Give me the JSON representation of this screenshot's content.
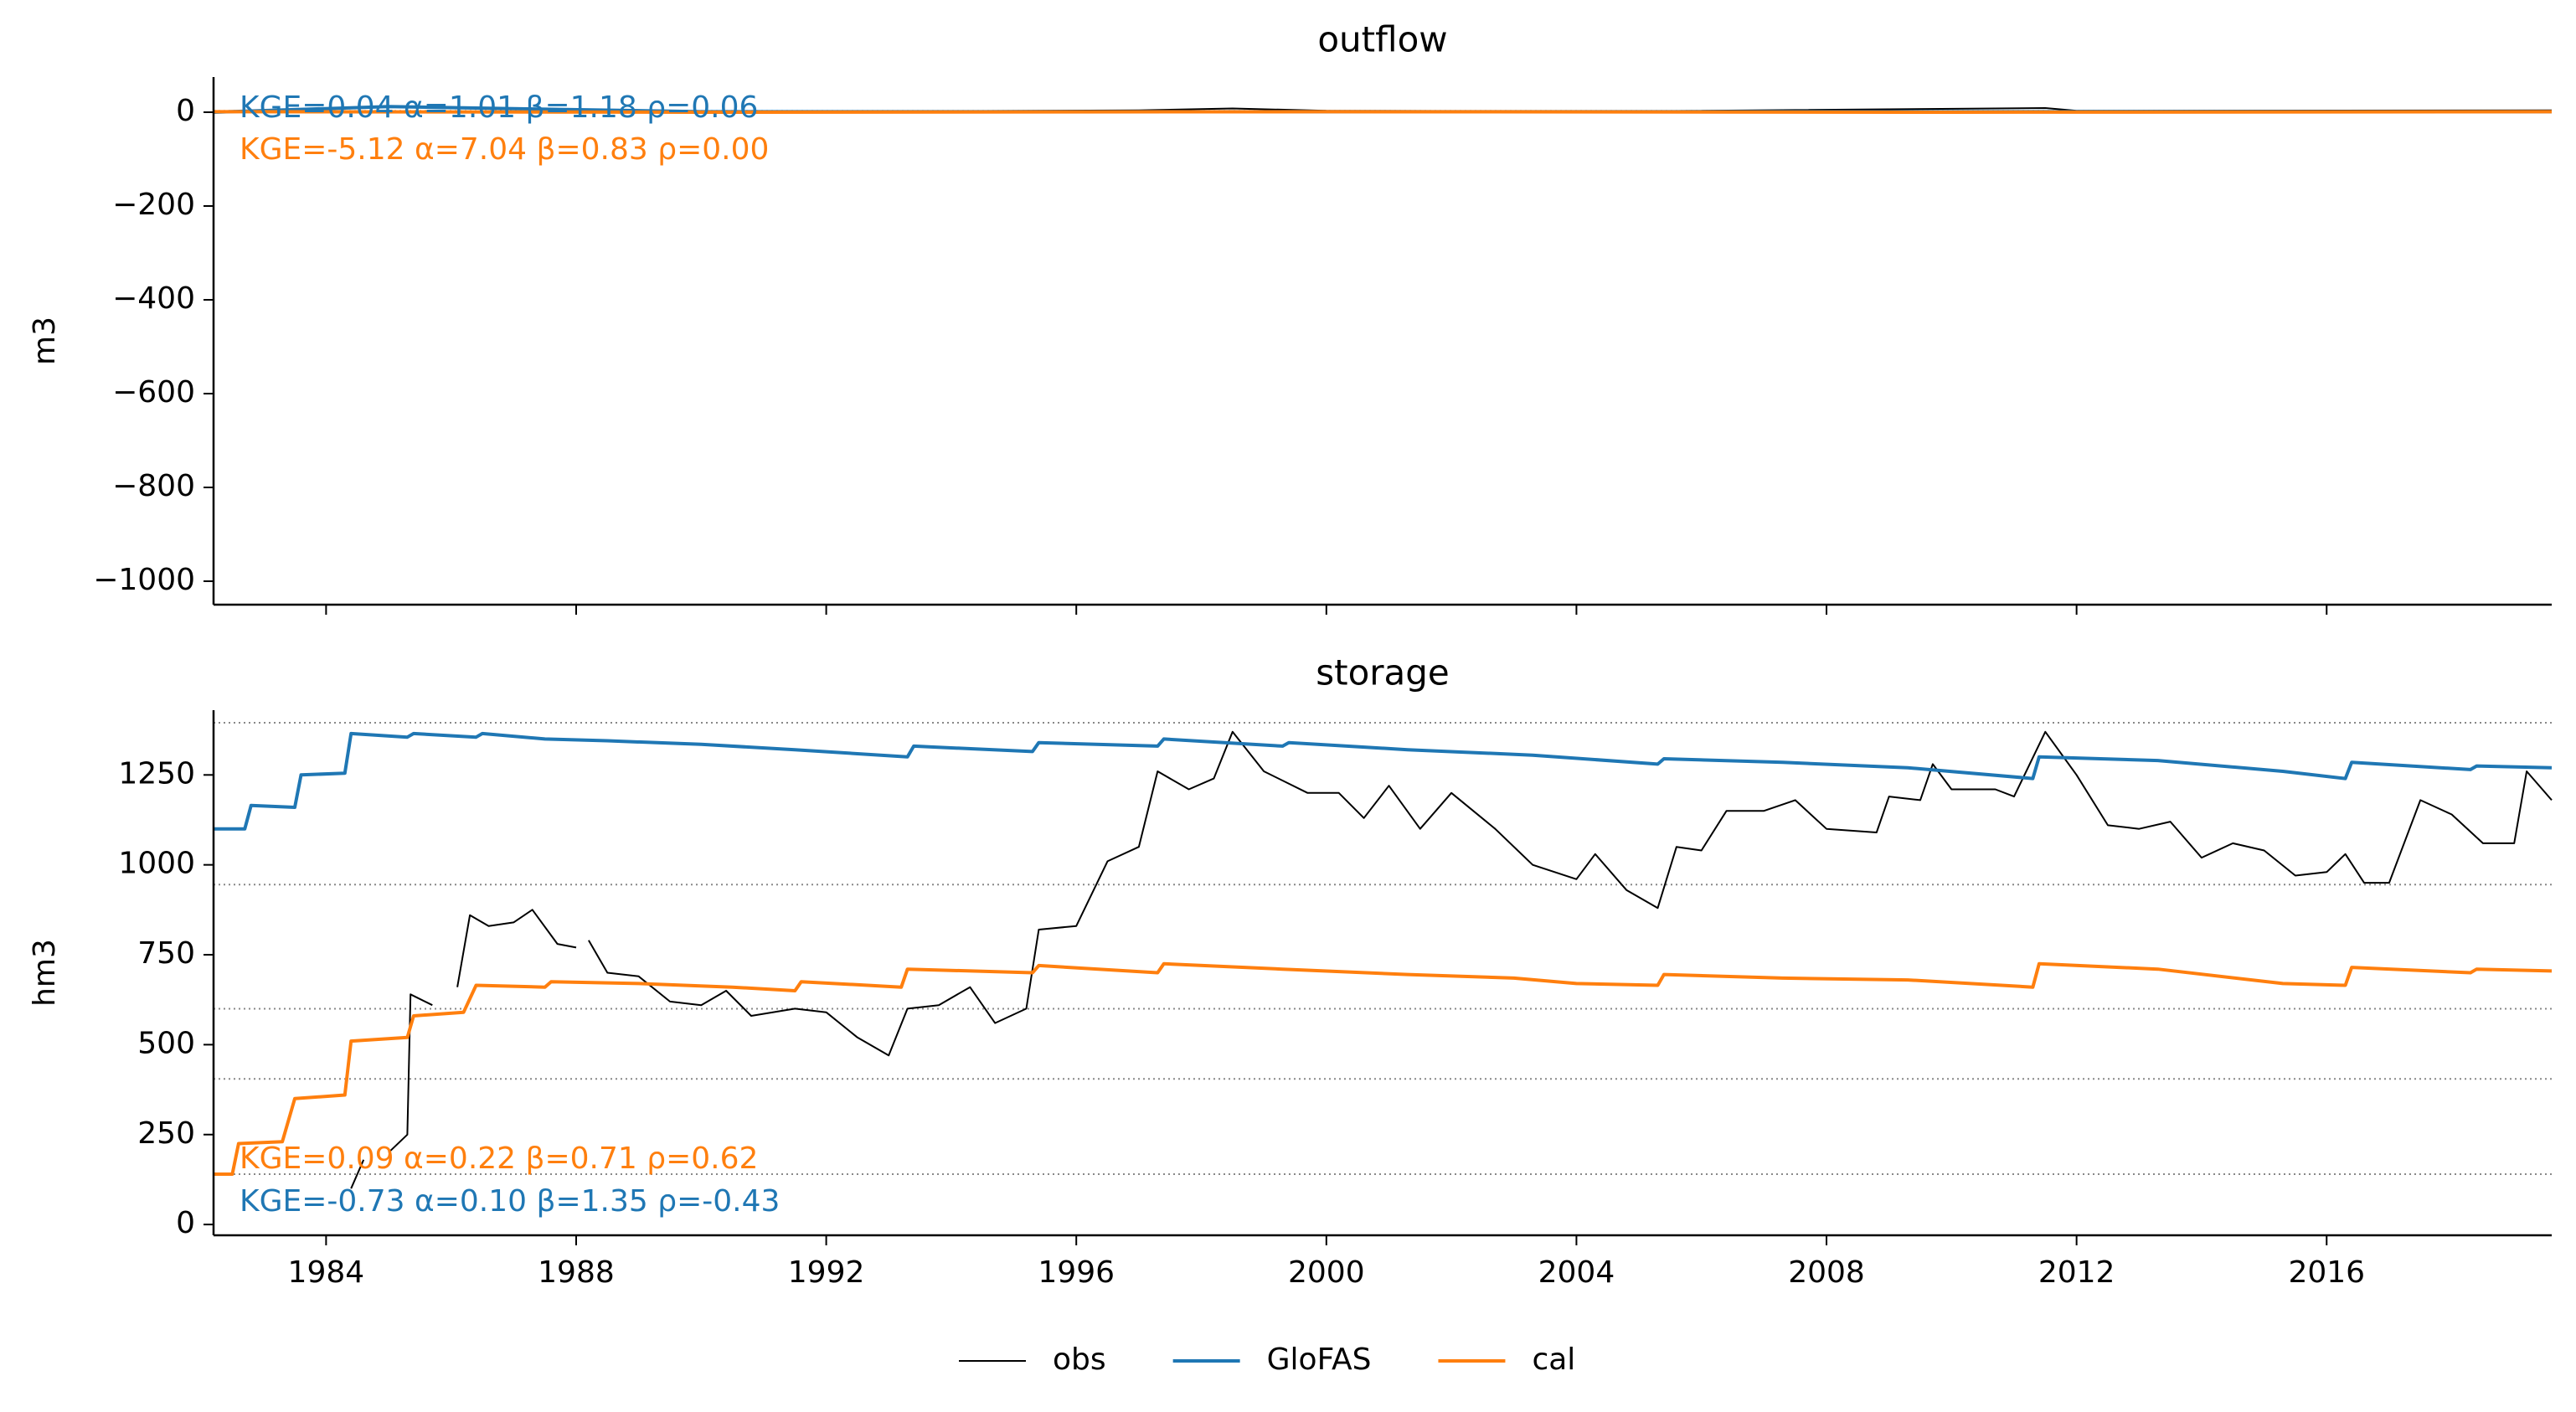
{
  "chart_data": [
    {
      "type": "line",
      "title": "outflow",
      "ylabel": "m3",
      "xlim": [
        1982.2,
        2019.6
      ],
      "xticks": [
        1984,
        1988,
        1992,
        1996,
        2000,
        2004,
        2008,
        2012,
        2016
      ],
      "ylim": [
        -1050,
        75
      ],
      "yticks": [
        {
          "value": 0,
          "label": "0"
        },
        {
          "value": -200,
          "label": "−200"
        },
        {
          "value": -400,
          "label": "−400"
        },
        {
          "value": -600,
          "label": "−600"
        },
        {
          "value": -800,
          "label": "−800"
        },
        {
          "value": -1000,
          "label": "−1000"
        }
      ],
      "hlines": [
        3
      ],
      "series": [
        {
          "name": "obs",
          "color": "#000000",
          "x": [
            1993.2,
            1997,
            1998.5,
            2000,
            2005,
            2011.5,
            2012,
            2019.6
          ],
          "values": [
            2,
            4,
            8,
            3,
            2,
            9,
            3,
            4
          ]
        },
        {
          "name": "GloFAS",
          "color": "#1f77b4",
          "x": [
            1982.2,
            1985,
            1990,
            2000,
            2010,
            2019.6
          ],
          "values": [
            0,
            12,
            1,
            1,
            1,
            1
          ]
        },
        {
          "name": "cal",
          "color": "#ff7f0e",
          "x": [
            1982.2,
            1990,
            2000,
            2010,
            2019.6
          ],
          "values": [
            1,
            0,
            1,
            0,
            1
          ]
        }
      ],
      "annotations": [
        {
          "text": "KGE=0.04  α=1.01  β=1.18  ρ=0.06",
          "color": "#1f77b4"
        },
        {
          "text": "KGE=-5.12  α=7.04  β=0.83  ρ=0.00",
          "color": "#ff7f0e"
        }
      ]
    },
    {
      "type": "line",
      "title": "storage",
      "ylabel": "hm3",
      "xlim": [
        1982.2,
        2019.6
      ],
      "xticks": [
        1984,
        1988,
        1992,
        1996,
        2000,
        2004,
        2008,
        2012,
        2016
      ],
      "ylim": [
        -30,
        1430
      ],
      "yticks": [
        0,
        250,
        500,
        750,
        1000,
        1250
      ],
      "hlines": [
        1395,
        945,
        600,
        405,
        140
      ],
      "series": [
        {
          "name": "obs",
          "color": "#000000",
          "x": [
            1984.4,
            1984.6,
            1984.7,
            1985.0,
            1985.3,
            1985.35,
            1985.7,
            1985.9,
            1986.1,
            1986.3,
            1986.6,
            1987,
            1987.3,
            1987.7,
            1988,
            1988.1,
            1988.2,
            1988.5,
            1989,
            1989.5,
            1990,
            1990.4,
            1990.8,
            1991.5,
            1992,
            1992.5,
            1993,
            1993.3,
            1993.8,
            1994.3,
            1994.7,
            1995.2,
            1995.4,
            1996,
            1996.5,
            1997,
            1997.3,
            1997.8,
            1998.2,
            1998.5,
            1999,
            1999.7,
            2000.2,
            2000.6,
            2001,
            2001.5,
            2002,
            2002.7,
            2003.3,
            2004,
            2004.3,
            2004.8,
            2005.3,
            2005.6,
            2006,
            2006.4,
            2007,
            2007.5,
            2008,
            2008.8,
            2009,
            2009.5,
            2009.7,
            2010,
            2010.7,
            2011,
            2011.5,
            2012,
            2012.5,
            2013,
            2013.5,
            2014,
            2014.5,
            2015,
            2015.5,
            2016,
            2016.3,
            2016.6,
            2017,
            2017.5,
            2018,
            2018.5,
            2019,
            2019.2,
            2019.6
          ],
          "values": [
            100,
            180,
            null,
            200,
            250,
            640,
            610,
            null,
            660,
            860,
            830,
            840,
            875,
            780,
            770,
            null,
            790,
            700,
            690,
            620,
            610,
            650,
            580,
            600,
            590,
            520,
            470,
            600,
            610,
            660,
            560,
            600,
            820,
            830,
            1010,
            1050,
            1260,
            1210,
            1240,
            1370,
            1260,
            1200,
            1200,
            1130,
            1220,
            1100,
            1200,
            1100,
            1000,
            960,
            1030,
            930,
            880,
            1050,
            1040,
            1150,
            1150,
            1180,
            1100,
            1090,
            1190,
            1180,
            1280,
            1210,
            1210,
            1190,
            1370,
            1250,
            1110,
            1100,
            1120,
            1020,
            1060,
            1040,
            970,
            980,
            1030,
            950,
            950,
            1180,
            1140,
            1060,
            1060,
            1260,
            1180
          ]
        },
        {
          "name": "GloFAS",
          "color": "#1f77b4",
          "x": [
            1982.2,
            1982.7,
            1982.8,
            1983.5,
            1983.6,
            1984.3,
            1984.4,
            1985.3,
            1985.4,
            1986.4,
            1986.5,
            1987.5,
            1988.5,
            1990,
            1991.5,
            1993.3,
            1993.4,
            1995.3,
            1995.4,
            1997.3,
            1997.4,
            1999.3,
            1999.4,
            2001.3,
            2003.3,
            2005.3,
            2005.4,
            2007.3,
            2009.3,
            2011.3,
            2011.4,
            2013.3,
            2015.3,
            2016.3,
            2016.4,
            2018.3,
            2018.4,
            2019.6
          ],
          "values": [
            1100,
            1100,
            1165,
            1160,
            1250,
            1255,
            1365,
            1355,
            1365,
            1355,
            1365,
            1350,
            1345,
            1335,
            1320,
            1300,
            1330,
            1315,
            1340,
            1330,
            1350,
            1330,
            1340,
            1320,
            1305,
            1280,
            1295,
            1285,
            1270,
            1240,
            1300,
            1290,
            1260,
            1240,
            1285,
            1265,
            1275,
            1270
          ]
        },
        {
          "name": "cal",
          "color": "#ff7f0e",
          "x": [
            1982.2,
            1982.5,
            1982.6,
            1983.3,
            1983.5,
            1984.3,
            1984.4,
            1985.3,
            1985.4,
            1986.2,
            1986.4,
            1987.5,
            1987.6,
            1989,
            1990.5,
            1991.5,
            1991.6,
            1993.2,
            1993.3,
            1995.3,
            1995.4,
            1997.3,
            1997.4,
            1999.3,
            2001.3,
            2003,
            2004,
            2005.3,
            2005.4,
            2007.3,
            2009.3,
            2011.3,
            2011.4,
            2013.3,
            2015.3,
            2016.3,
            2016.4,
            2018.3,
            2018.4,
            2019.6
          ],
          "values": [
            140,
            140,
            225,
            230,
            350,
            360,
            510,
            520,
            580,
            590,
            665,
            660,
            675,
            670,
            660,
            650,
            675,
            660,
            710,
            700,
            720,
            700,
            725,
            710,
            695,
            685,
            670,
            665,
            695,
            685,
            680,
            660,
            725,
            710,
            670,
            665,
            715,
            700,
            710,
            705
          ]
        }
      ],
      "annotations": [
        {
          "text": "KGE=0.09  α=0.22  β=0.71  ρ=0.62",
          "color": "#ff7f0e"
        },
        {
          "text": "KGE=-0.73  α=0.10  β=1.35  ρ=-0.43",
          "color": "#1f77b4"
        }
      ]
    }
  ]
}
